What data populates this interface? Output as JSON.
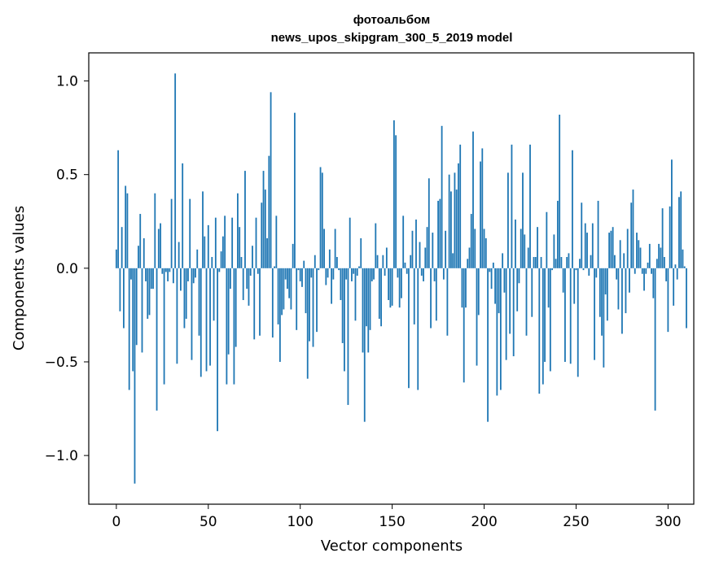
{
  "chart_data": {
    "type": "bar",
    "title_line1": "фотоальбом",
    "title_line2": "news_upos_skipgram_300_5_2019 model",
    "xlabel": "Vector components",
    "ylabel": "Components values",
    "xlim": [
      -15,
      314
    ],
    "ylim": [
      -1.26,
      1.15
    ],
    "xticks": [
      0,
      50,
      100,
      150,
      200,
      250,
      300
    ],
    "xtick_labels": [
      "0",
      "50",
      "100",
      "150",
      "200",
      "250",
      "300"
    ],
    "yticks": [
      -1.0,
      -0.5,
      0.0,
      0.5,
      1.0
    ],
    "ytick_labels": [
      "−1.0",
      "−0.5",
      "0.0",
      "0.5",
      "1.0"
    ],
    "bar_color": "#1f77b4",
    "values": [
      0.1,
      0.63,
      -0.23,
      0.22,
      -0.32,
      0.44,
      0.4,
      -0.65,
      -0.06,
      -0.55,
      -1.15,
      -0.41,
      0.12,
      0.29,
      -0.45,
      0.16,
      -0.07,
      -0.27,
      -0.25,
      -0.11,
      -0.11,
      0.4,
      -0.76,
      0.21,
      0.24,
      -0.03,
      -0.62,
      -0.02,
      -0.07,
      -0.02,
      0.37,
      -0.08,
      1.04,
      -0.51,
      0.14,
      -0.12,
      0.56,
      -0.32,
      -0.27,
      -0.07,
      0.37,
      -0.49,
      -0.08,
      -0.05,
      0.1,
      -0.36,
      -0.58,
      0.41,
      0.17,
      -0.55,
      0.23,
      -0.52,
      0.06,
      -0.28,
      0.27,
      -0.87,
      -0.02,
      0.09,
      0.17,
      0.28,
      -0.62,
      -0.46,
      -0.11,
      0.27,
      -0.62,
      -0.42,
      0.4,
      0.22,
      0.06,
      -0.17,
      0.52,
      -0.11,
      -0.2,
      -0.04,
      0.12,
      -0.38,
      0.27,
      -0.03,
      -0.36,
      0.35,
      0.52,
      0.42,
      0.16,
      0.6,
      0.94,
      -0.37,
      0.01,
      0.28,
      -0.3,
      -0.5,
      -0.25,
      -0.22,
      -0.06,
      -0.11,
      -0.16,
      -0.22,
      0.13,
      0.83,
      -0.33,
      -0.01,
      -0.07,
      -0.1,
      0.04,
      -0.24,
      -0.59,
      -0.39,
      -0.05,
      -0.42,
      0.07,
      -0.34,
      -0.01,
      0.54,
      0.51,
      0.21,
      -0.09,
      -0.05,
      0.1,
      -0.19,
      -0.06,
      0.21,
      0.06,
      -0.01,
      -0.17,
      -0.4,
      -0.55,
      -0.06,
      -0.73,
      0.27,
      -0.07,
      -0.03,
      -0.28,
      -0.04,
      0.01,
      0.16,
      -0.45,
      -0.82,
      -0.31,
      -0.45,
      -0.33,
      -0.07,
      -0.06,
      0.24,
      0.07,
      -0.27,
      -0.31,
      0.07,
      -0.04,
      0.11,
      -0.17,
      -0.21,
      -0.2,
      0.79,
      0.71,
      -0.05,
      -0.21,
      -0.16,
      0.28,
      0.03,
      -0.03,
      -0.64,
      0.07,
      0.2,
      -0.3,
      0.26,
      -0.65,
      0.14,
      -0.04,
      -0.07,
      0.11,
      0.22,
      0.48,
      -0.32,
      0.19,
      -0.07,
      -0.28,
      0.36,
      0.37,
      0.76,
      -0.06,
      0.2,
      -0.36,
      0.5,
      0.41,
      0.08,
      0.51,
      0.42,
      0.56,
      0.66,
      -0.21,
      -0.61,
      -0.21,
      0.05,
      0.11,
      0.29,
      0.73,
      0.21,
      -0.52,
      -0.25,
      0.57,
      0.64,
      0.21,
      0.16,
      -0.82,
      -0.02,
      -0.11,
      0.03,
      -0.19,
      -0.68,
      -0.24,
      -0.65,
      0.08,
      -0.13,
      -0.49,
      0.51,
      -0.35,
      0.66,
      -0.47,
      0.26,
      -0.23,
      -0.08,
      0.21,
      0.51,
      0.18,
      -0.36,
      0.11,
      0.66,
      -0.26,
      0.06,
      0.06,
      0.22,
      -0.67,
      0.06,
      -0.62,
      -0.5,
      0.3,
      -0.21,
      -0.55,
      -0.01,
      0.18,
      0.05,
      0.36,
      0.82,
      0.06,
      -0.13,
      -0.5,
      0.06,
      0.08,
      -0.51,
      0.63,
      -0.19,
      -0.01,
      -0.58,
      0.05,
      0.35,
      -0.01,
      0.24,
      0.19,
      -0.04,
      0.07,
      0.24,
      -0.49,
      -0.05,
      0.36,
      -0.26,
      -0.36,
      -0.53,
      -0.14,
      -0.28,
      0.19,
      0.2,
      0.22,
      0.07,
      -0.06,
      -0.22,
      0.15,
      -0.35,
      0.08,
      -0.24,
      0.21,
      -0.13,
      0.35,
      0.42,
      -0.03,
      0.19,
      0.15,
      0.11,
      -0.03,
      -0.12,
      -0.03,
      0.03,
      0.13,
      -0.03,
      -0.16,
      -0.76,
      0.05,
      0.13,
      0.11,
      0.32,
      0.06,
      -0.07,
      -0.34,
      0.33,
      0.58,
      -0.2,
      0.02,
      -0.06,
      0.38,
      0.41,
      0.1,
      0.01,
      -0.32
    ]
  }
}
